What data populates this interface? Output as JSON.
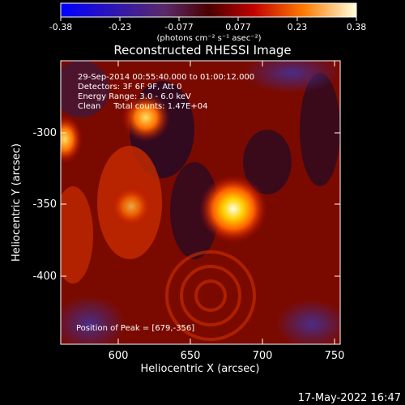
{
  "colorbar": {
    "ticks": [
      "-0.38",
      "-0.23",
      "-0.077",
      "0.077",
      "0.23",
      "0.38"
    ],
    "units_label": "(photons cm⁻² s⁻¹ asec⁻²)"
  },
  "title": "Reconstructed RHESSI Image",
  "info": {
    "line1": "29-Sep-2014 00:55:40.000 to 01:00:12.000",
    "line2": "Detectors: 3F 6F 9F, Att 0",
    "line3": "Energy Range: 3.0 - 6.0 keV",
    "line4": "Clean     Total counts: 1.47E+04"
  },
  "peak_label": "Position of Peak = [679,-356]",
  "axes": {
    "xlabel": "Heliocentric X (arcsec)",
    "ylabel": "Heliocentric Y (arcsec)",
    "xticks": [
      "600",
      "650",
      "700",
      "750"
    ],
    "yticks": [
      "-300",
      "-350",
      "-400"
    ]
  },
  "timestamp": "17-May-2022 16:47"
}
